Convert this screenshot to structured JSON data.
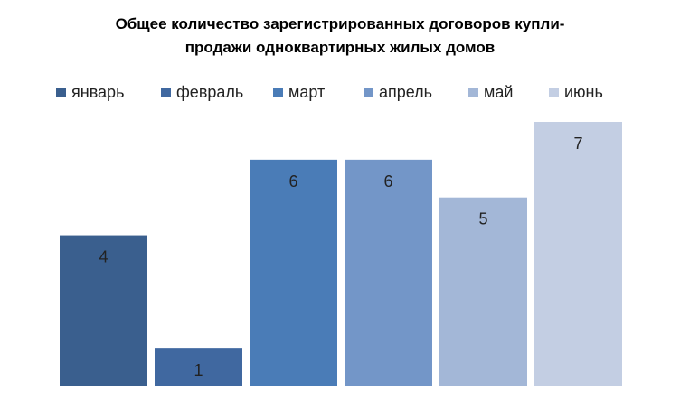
{
  "chart_data": {
    "type": "bar",
    "title_lines": [
      "Общее количество зарегистрированных договоров купли-",
      "продажи одноквартирных жилых домов"
    ],
    "categories": [
      "январь",
      "февраль",
      "март",
      "апрель",
      "май",
      "июнь"
    ],
    "values": [
      4,
      1,
      6,
      6,
      5,
      7
    ],
    "colors": [
      "#3A5F8E",
      "#4068A0",
      "#4A7CB7",
      "#7396C8",
      "#A3B7D7",
      "#C3CEE3"
    ],
    "legend_position": "top",
    "grid": false,
    "data_labels": true,
    "ylim": [
      0,
      7
    ]
  }
}
